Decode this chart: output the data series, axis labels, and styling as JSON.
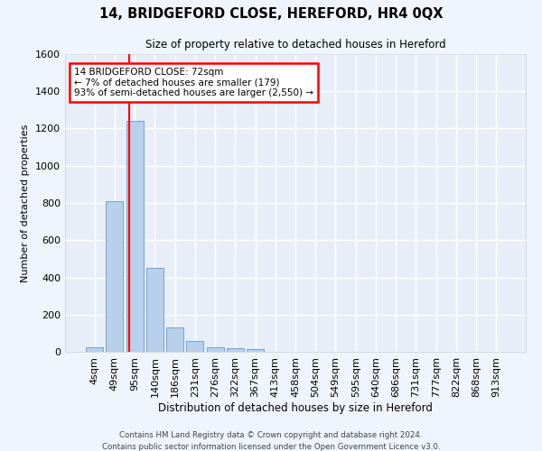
{
  "title": "14, BRIDGEFORD CLOSE, HEREFORD, HR4 0QX",
  "subtitle": "Size of property relative to detached houses in Hereford",
  "xlabel": "Distribution of detached houses by size in Hereford",
  "ylabel": "Number of detached properties",
  "bar_labels": [
    "4sqm",
    "49sqm",
    "95sqm",
    "140sqm",
    "186sqm",
    "231sqm",
    "276sqm",
    "322sqm",
    "367sqm",
    "413sqm",
    "458sqm",
    "504sqm",
    "549sqm",
    "595sqm",
    "640sqm",
    "686sqm",
    "731sqm",
    "777sqm",
    "822sqm",
    "868sqm",
    "913sqm"
  ],
  "bar_values": [
    25,
    810,
    1240,
    450,
    130,
    60,
    25,
    18,
    15,
    0,
    0,
    0,
    0,
    0,
    0,
    0,
    0,
    0,
    0,
    0,
    0
  ],
  "bar_color": "#b8d0ea",
  "bar_edgecolor": "#6699cc",
  "ylim": [
    0,
    1600
  ],
  "yticks": [
    0,
    200,
    400,
    600,
    800,
    1000,
    1200,
    1400,
    1600
  ],
  "annotation_line1": "14 BRIDGEFORD CLOSE: 72sqm",
  "annotation_line2": "← 7% of detached houses are smaller (179)",
  "annotation_line3": "93% of semi-detached houses are larger (2,550) →",
  "red_line_x": 1.72,
  "background_color": "#e8eef8",
  "grid_color": "#ffffff",
  "fig_bg_color": "#f0f4fc",
  "footer1": "Contains HM Land Registry data © Crown copyright and database right 2024.",
  "footer2": "Contains public sector information licensed under the Open Government Licence v3.0."
}
